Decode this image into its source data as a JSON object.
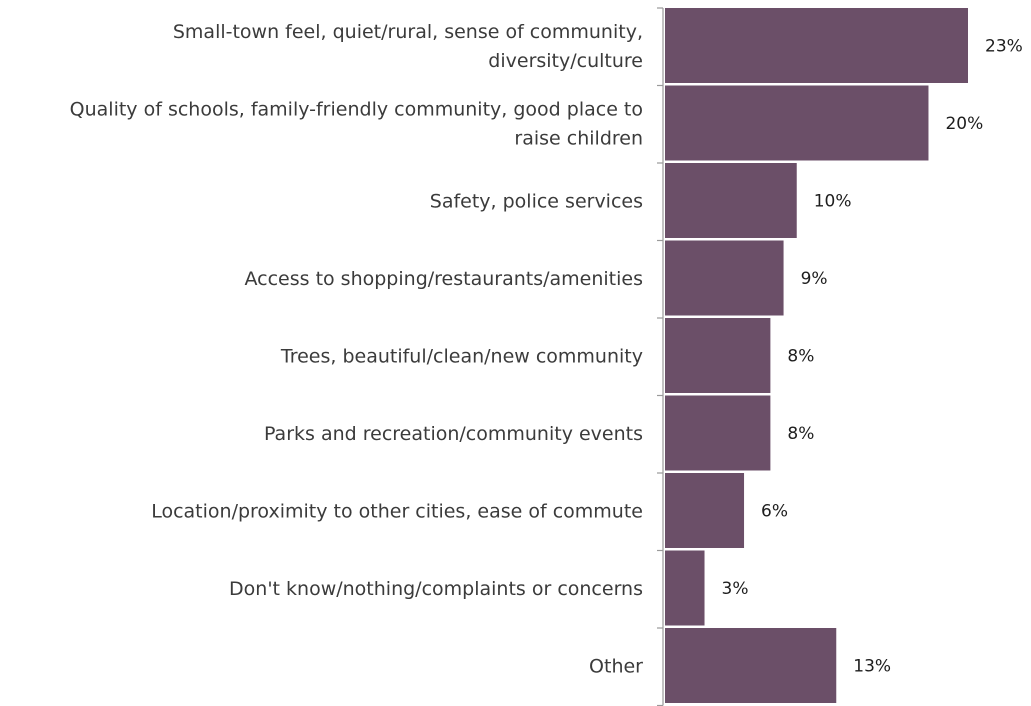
{
  "chart_data": {
    "type": "bar",
    "orientation": "horizontal",
    "categories": [
      [
        "Small-town feel, quiet/rural, sense of community,",
        "diversity/culture"
      ],
      [
        "Quality of schools, family-friendly community, good place to",
        "raise children"
      ],
      [
        "Safety, police services"
      ],
      [
        "Access to shopping/restaurants/amenities"
      ],
      [
        "Trees, beautiful/clean/new community"
      ],
      [
        "Parks and recreation/community events"
      ],
      [
        "Location/proximity to other cities, ease of commute"
      ],
      [
        "Don't know/nothing/complaints or concerns"
      ],
      [
        "Other"
      ]
    ],
    "values": [
      23,
      20,
      10,
      9,
      8,
      8,
      6,
      3,
      13
    ],
    "value_labels": [
      "23%",
      "20%",
      "10%",
      "9%",
      "8%",
      "8%",
      "6%",
      "3%",
      "13%"
    ],
    "xlim": [
      0,
      23
    ],
    "grid": false,
    "legend": "none",
    "bar_color": "#6b4f68",
    "axis_color": "#9a9a9a"
  }
}
